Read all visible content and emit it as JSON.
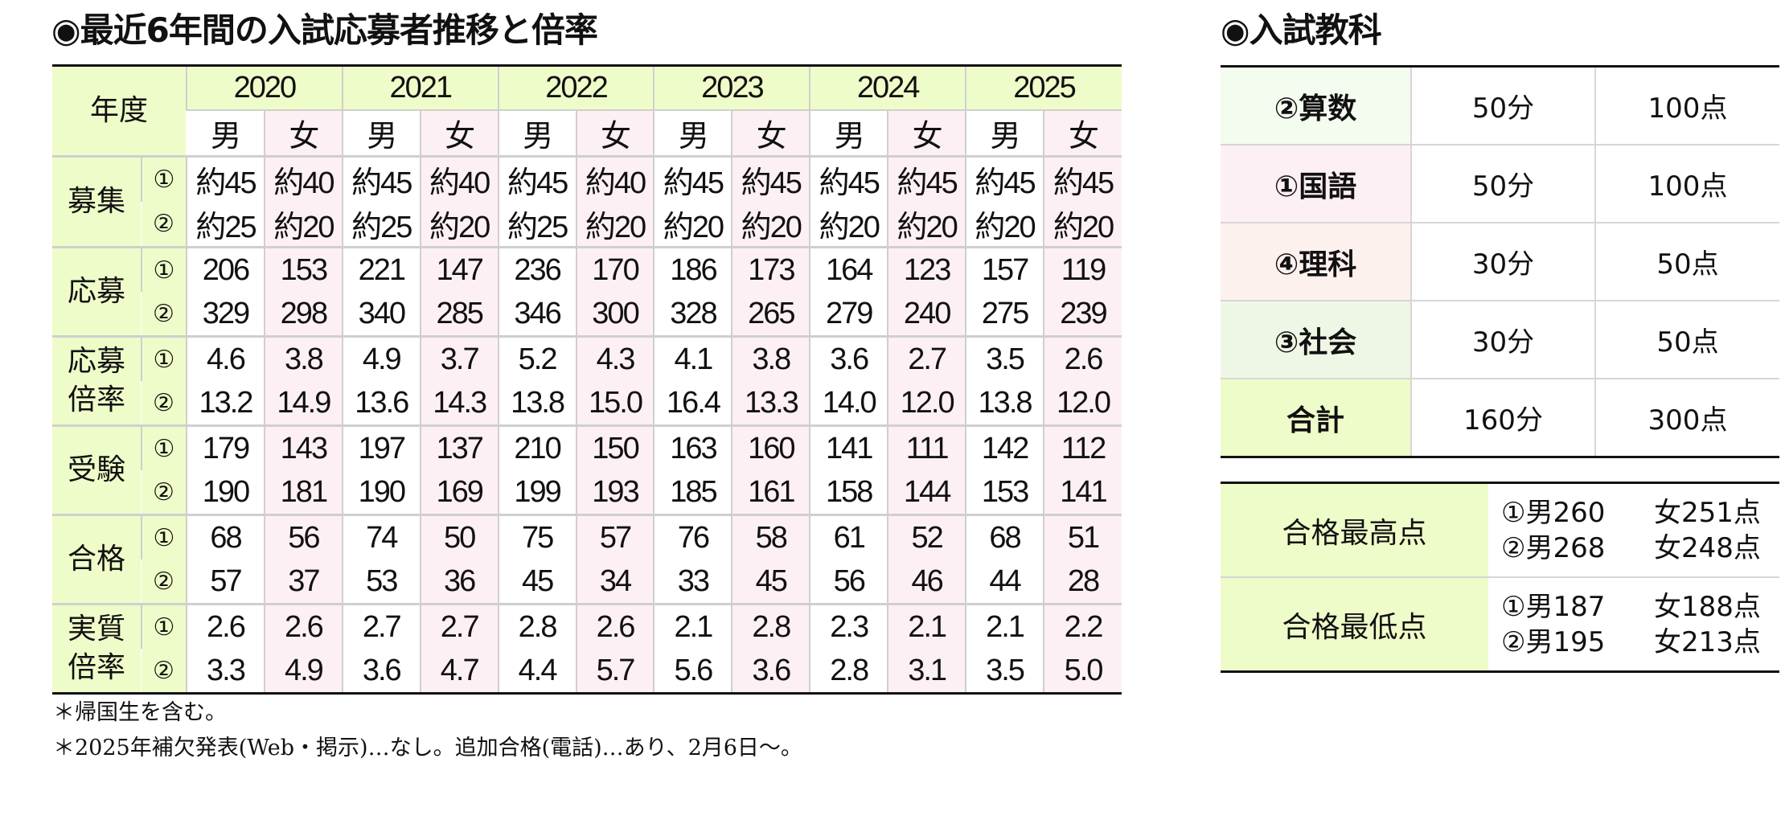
{
  "left": {
    "title": "◉最近6年間の入試応募者推移と倍率",
    "year_header": "年度",
    "years": [
      "2020",
      "2021",
      "2022",
      "2023",
      "2024",
      "2025"
    ],
    "male": "男",
    "female": "女",
    "rows": [
      {
        "label": "募集",
        "r1_mark": "①",
        "r2_mark": "②",
        "r1": [
          "約45",
          "約40",
          "約45",
          "約40",
          "約45",
          "約40",
          "約45",
          "約45",
          "約45",
          "約45",
          "約45",
          "約45"
        ],
        "r2": [
          "約25",
          "約20",
          "約25",
          "約20",
          "約25",
          "約20",
          "約20",
          "約20",
          "約20",
          "約20",
          "約20",
          "約20"
        ]
      },
      {
        "label": "応募",
        "r1_mark": "①",
        "r2_mark": "②",
        "r1": [
          "206",
          "153",
          "221",
          "147",
          "236",
          "170",
          "186",
          "173",
          "164",
          "123",
          "157",
          "119"
        ],
        "r2": [
          "329",
          "298",
          "340",
          "285",
          "346",
          "300",
          "328",
          "265",
          "279",
          "240",
          "275",
          "239"
        ]
      },
      {
        "label": "応募\n倍率",
        "r1_mark": "①",
        "r2_mark": "②",
        "r1": [
          "4.6",
          "3.8",
          "4.9",
          "3.7",
          "5.2",
          "4.3",
          "4.1",
          "3.8",
          "3.6",
          "2.7",
          "3.5",
          "2.6"
        ],
        "r2": [
          "13.2",
          "14.9",
          "13.6",
          "14.3",
          "13.8",
          "15.0",
          "16.4",
          "13.3",
          "14.0",
          "12.0",
          "13.8",
          "12.0"
        ]
      },
      {
        "label": "受験",
        "r1_mark": "①",
        "r2_mark": "②",
        "r1": [
          "179",
          "143",
          "197",
          "137",
          "210",
          "150",
          "163",
          "160",
          "141",
          "111",
          "142",
          "112"
        ],
        "r2": [
          "190",
          "181",
          "190",
          "169",
          "199",
          "193",
          "185",
          "161",
          "158",
          "144",
          "153",
          "141"
        ]
      },
      {
        "label": "合格",
        "r1_mark": "①",
        "r2_mark": "②",
        "r1": [
          "68",
          "56",
          "74",
          "50",
          "75",
          "57",
          "76",
          "58",
          "61",
          "52",
          "68",
          "51"
        ],
        "r2": [
          "57",
          "37",
          "53",
          "36",
          "45",
          "34",
          "33",
          "45",
          "56",
          "46",
          "44",
          "28"
        ]
      },
      {
        "label": "実質\n倍率",
        "r1_mark": "①",
        "r2_mark": "②",
        "r1": [
          "2.6",
          "2.6",
          "2.7",
          "2.7",
          "2.8",
          "2.6",
          "2.1",
          "2.8",
          "2.3",
          "2.1",
          "2.1",
          "2.2"
        ],
        "r2": [
          "3.3",
          "4.9",
          "3.6",
          "4.7",
          "4.4",
          "5.7",
          "5.6",
          "3.6",
          "2.8",
          "3.1",
          "3.5",
          "5.0"
        ]
      }
    ],
    "notes": [
      "＊帰国生を含む。",
      "＊2025年補欠発表(Web・掲示)…なし。追加合格(電話)…あり、2月6日～。"
    ]
  },
  "right": {
    "title": "◉入試教科",
    "subjects": [
      {
        "name": "②算数",
        "time": "50分",
        "points": "100点",
        "color": "#f4fbef"
      },
      {
        "name": "①国語",
        "time": "50分",
        "points": "100点",
        "color": "#fdf0f5"
      },
      {
        "name": "④理科",
        "time": "30分",
        "points": "50点",
        "color": "#fdf1ee"
      },
      {
        "name": "③社会",
        "time": "30分",
        "points": "50点",
        "color": "#eef7e5"
      },
      {
        "name": "合計",
        "time": "160分",
        "points": "300点",
        "color": "#eefcc9"
      }
    ],
    "scores": [
      {
        "label": "合格最高点",
        "lines": [
          {
            "m": "①男260",
            "f": "女251点"
          },
          {
            "m": "②男268",
            "f": "女248点"
          }
        ]
      },
      {
        "label": "合格最低点",
        "lines": [
          {
            "m": "①男187",
            "f": "女188点"
          },
          {
            "m": "②男195",
            "f": "女213点"
          }
        ]
      }
    ]
  }
}
